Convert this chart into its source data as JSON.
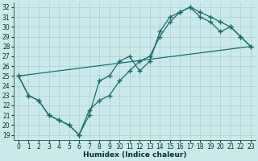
{
  "xlabel": "Humidex (Indice chaleur)",
  "bg_color": "#cce9e9",
  "grid_color": "#a8d0d0",
  "line_color": "#1a6b6b",
  "xlim": [
    -0.5,
    23.5
  ],
  "ylim": [
    18.5,
    32.5
  ],
  "yticks": [
    19,
    20,
    21,
    22,
    23,
    24,
    25,
    26,
    27,
    28,
    29,
    30,
    31,
    32
  ],
  "xticks": [
    0,
    1,
    2,
    3,
    4,
    5,
    6,
    7,
    8,
    9,
    10,
    11,
    12,
    13,
    14,
    15,
    16,
    17,
    18,
    19,
    20,
    21,
    22,
    23
  ],
  "series1_x": [
    0,
    1,
    2,
    3,
    4,
    5,
    6,
    7,
    8,
    9,
    10,
    11,
    12,
    13,
    14,
    15,
    16,
    17,
    18,
    19,
    20,
    21,
    22,
    23
  ],
  "series1_y": [
    25,
    23,
    22.5,
    21,
    20.5,
    20,
    19,
    21,
    24.5,
    25,
    26.5,
    27,
    25.5,
    26.5,
    29.5,
    31,
    31.5,
    32,
    31,
    30.5,
    29.5,
    30,
    29,
    28
  ],
  "series2_x": [
    0,
    1,
    2,
    3,
    4,
    5,
    6,
    7,
    8,
    9,
    10,
    11,
    12,
    13,
    14,
    15,
    16,
    17,
    18,
    19,
    20,
    21,
    22,
    23
  ],
  "series2_y": [
    25,
    23,
    22.5,
    21,
    20.5,
    20,
    19,
    21.5,
    22.5,
    23,
    24.5,
    25.5,
    26.5,
    27,
    29,
    30.5,
    31.5,
    32,
    31.5,
    31,
    30.5,
    30,
    29,
    28
  ],
  "series3_x": [
    0,
    23
  ],
  "series3_y": [
    25,
    28
  ]
}
